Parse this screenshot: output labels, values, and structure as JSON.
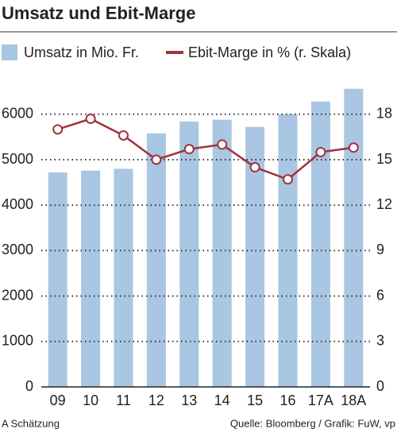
{
  "chart_data": {
    "type": "bar_line",
    "title": "Umsatz und Ebit-Marge",
    "categories": [
      "09",
      "10",
      "11",
      "12",
      "13",
      "14",
      "15",
      "16",
      "17A",
      "18A"
    ],
    "series": [
      {
        "name": "Umsatz in Mio. Fr.",
        "color": "#a9c6e2",
        "type": "bar",
        "values": [
          4720,
          4760,
          4800,
          5580,
          5840,
          5880,
          5720,
          6000,
          6280,
          6560
        ]
      },
      {
        "name": "Ebit-Marge in % (r. Skala)",
        "color": "#a0333a",
        "type": "line",
        "axis": "y2",
        "values": [
          17.0,
          17.7,
          16.6,
          15.0,
          15.7,
          16.0,
          14.5,
          13.7,
          15.5,
          15.8
        ]
      }
    ],
    "ylim": [
      0,
      6800
    ],
    "yticks": [
      0,
      1000,
      2000,
      3000,
      4000,
      5000,
      6000
    ],
    "y2lim": [
      0,
      20.4
    ],
    "y2ticks": [
      0,
      3,
      6,
      9,
      12,
      15,
      18
    ],
    "grid": true,
    "footnote": "A Schätzung",
    "source": "Quelle: Bloomberg / Grafik: FuW, vp"
  }
}
